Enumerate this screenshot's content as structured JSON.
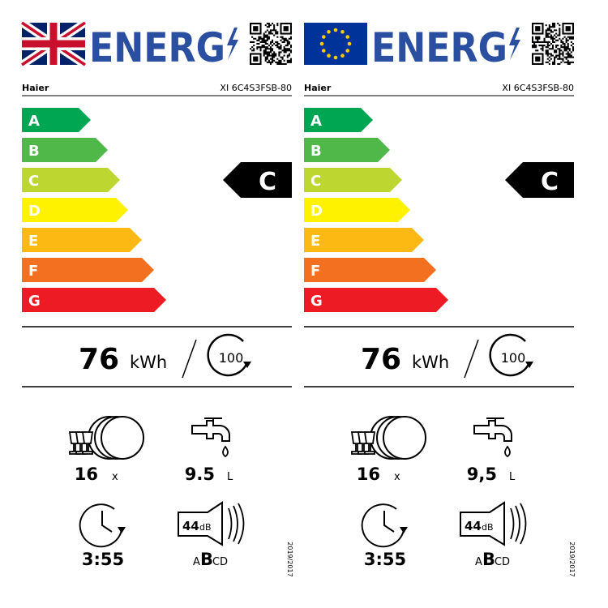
{
  "labels": [
    {
      "heading": "ENERG",
      "brand": "Haier",
      "model": "XI 6C4S3FSB-80",
      "classes": [
        "A",
        "B",
        "C",
        "D",
        "E",
        "F",
        "G"
      ],
      "rating": "C",
      "energy": {
        "value": "76",
        "unit": "kWh",
        "cycles": "100"
      },
      "place_settings": {
        "value": "16",
        "unit": "x"
      },
      "water": {
        "value": "9.5",
        "unit": "L"
      },
      "duration": "3:55",
      "noise": {
        "value": "44",
        "unit": "dB",
        "classes": [
          "A",
          "B",
          "C",
          "D"
        ],
        "emphasized": 1
      },
      "regulation": "2019/2017"
    },
    {
      "heading": "ENERG",
      "brand": "Haier",
      "model": "XI 6C4S3FSB-80",
      "classes": [
        "A",
        "B",
        "C",
        "D",
        "E",
        "F",
        "G"
      ],
      "rating": "C",
      "energy": {
        "value": "76",
        "unit": "kWh",
        "cycles": "100"
      },
      "place_settings": {
        "value": "16",
        "unit": "x"
      },
      "water": {
        "value": "9,5",
        "unit": "L"
      },
      "duration": "3:55",
      "noise": {
        "value": "44",
        "unit": "dB",
        "classes": [
          "A",
          "B",
          "C",
          "D"
        ],
        "emphasized": 1
      },
      "regulation": "2019/2017"
    }
  ]
}
